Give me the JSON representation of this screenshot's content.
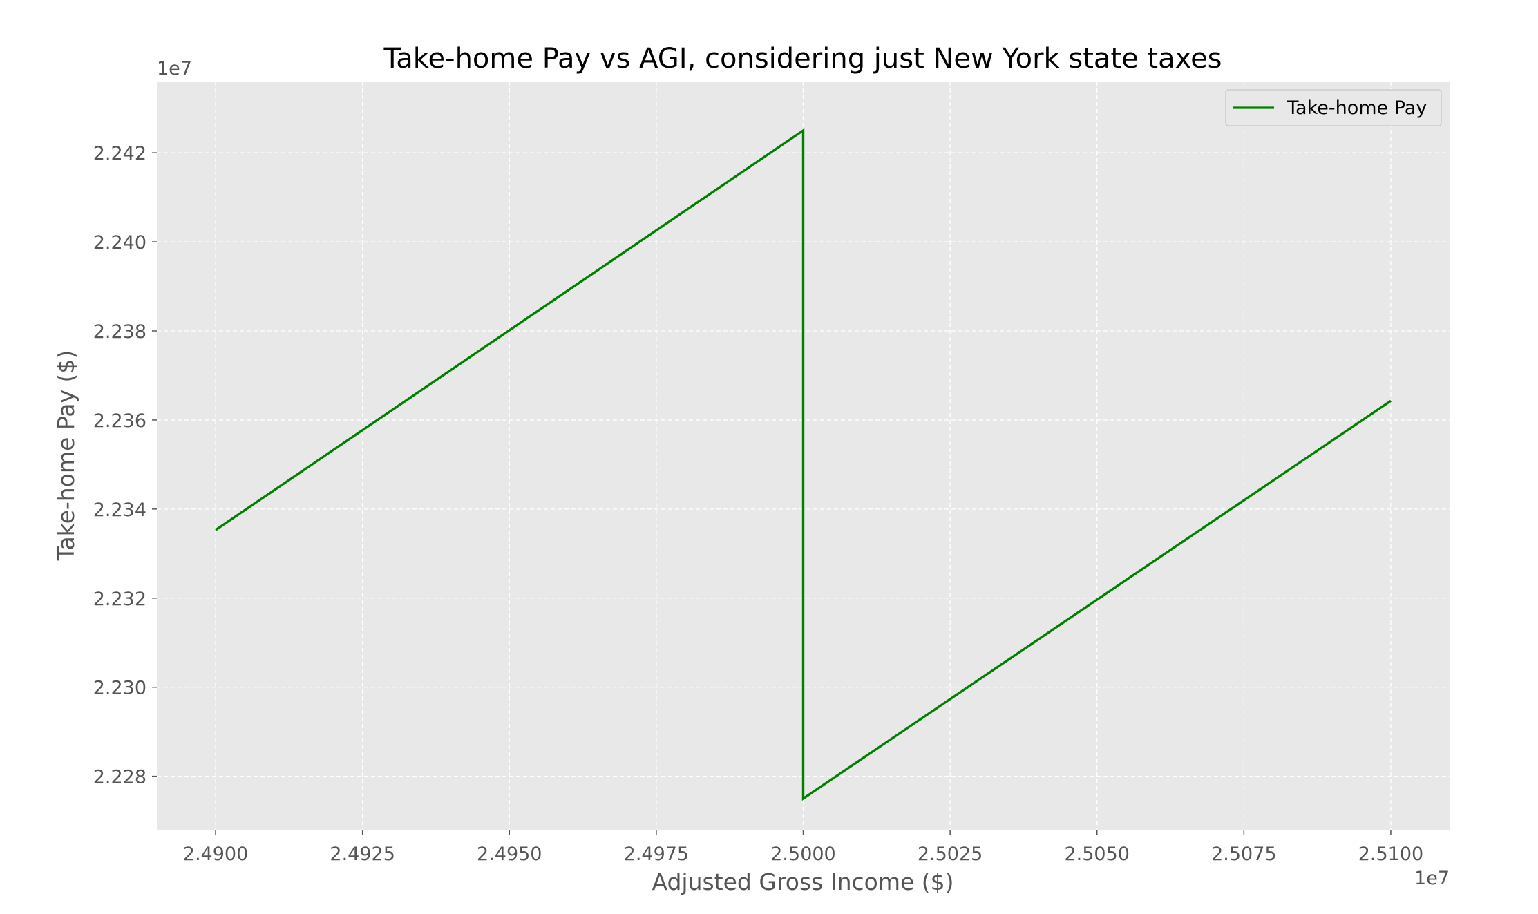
{
  "chart_data": {
    "type": "line",
    "title": "Take-home Pay vs AGI, considering just New York state taxes",
    "xlabel": "Adjusted Gross Income ($)",
    "ylabel": "Take-home Pay ($)",
    "x_offset_label": "1e7",
    "y_offset_label": "1e7",
    "xlim": [
      2.489,
      2.511
    ],
    "ylim": [
      2.2268,
      2.2436
    ],
    "x_scale_factor": 10000000,
    "y_scale_factor": 10000000,
    "grid": true,
    "legend_position": "top-right",
    "xticks": [
      2.49,
      2.4925,
      2.495,
      2.4975,
      2.5,
      2.5025,
      2.505,
      2.5075,
      2.51
    ],
    "xtick_labels": [
      "2.4900",
      "2.4925",
      "2.4950",
      "2.4975",
      "2.5000",
      "2.5025",
      "2.5050",
      "2.5075",
      "2.5100"
    ],
    "yticks": [
      2.228,
      2.23,
      2.232,
      2.234,
      2.236,
      2.238,
      2.24,
      2.242
    ],
    "ytick_labels": [
      "2.228",
      "2.230",
      "2.232",
      "2.234",
      "2.236",
      "2.238",
      "2.240",
      "2.242"
    ],
    "series": [
      {
        "name": "Take-home Pay",
        "color": "#008000",
        "x": [
          2.49,
          2.5,
          2.5,
          2.51
        ],
        "y": [
          2.23353,
          2.2425,
          2.2275,
          2.23643
        ]
      }
    ]
  },
  "colors": {
    "plot_background": "#e8e8e8",
    "grid": "#ffffff",
    "text_muted": "#555555"
  }
}
